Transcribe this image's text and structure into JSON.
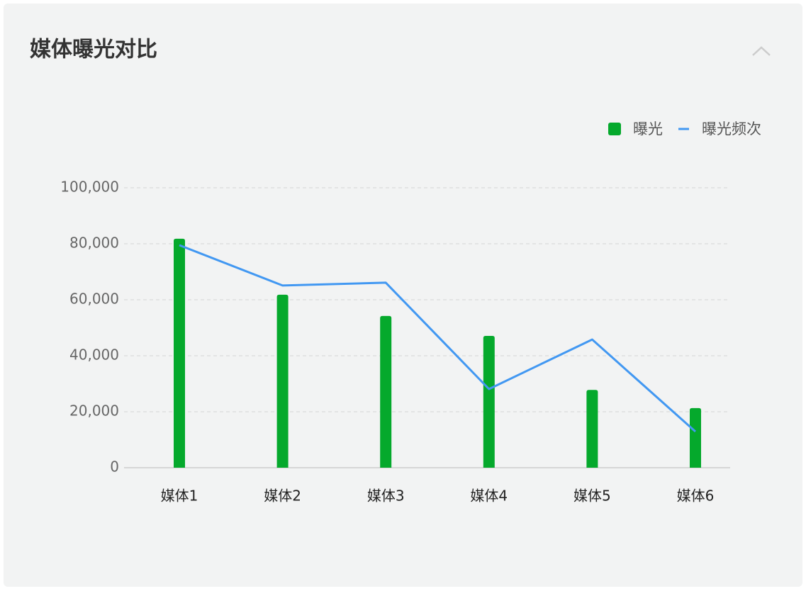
{
  "chart_data": {
    "type": "bar",
    "title": "媒体曝光对比",
    "categories": [
      "媒体1",
      "媒体2",
      "媒体3",
      "媒体4",
      "媒体5",
      "媒体6"
    ],
    "series": [
      {
        "name": "曝光",
        "color": "#05a92c",
        "type": "bar",
        "values": [
          81800,
          61800,
          54200,
          47100,
          27800,
          21300
        ]
      },
      {
        "name": "曝光频次",
        "color": "#4298f2",
        "type": "line",
        "values": [
          79500,
          65100,
          66100,
          28100,
          45800,
          12900
        ]
      }
    ],
    "ylim": [
      0,
      100000
    ],
    "yticks": [
      0,
      {
        "value": 20000,
        "label": "20,000"
      },
      {
        "value": 40000,
        "label": "40,000"
      },
      {
        "value": 60000,
        "label": "60,000"
      },
      {
        "value": 80000,
        "label": "80,000"
      },
      {
        "value": 100000,
        "label": "100,000"
      }
    ],
    "grid": true,
    "legend": "top-right"
  }
}
